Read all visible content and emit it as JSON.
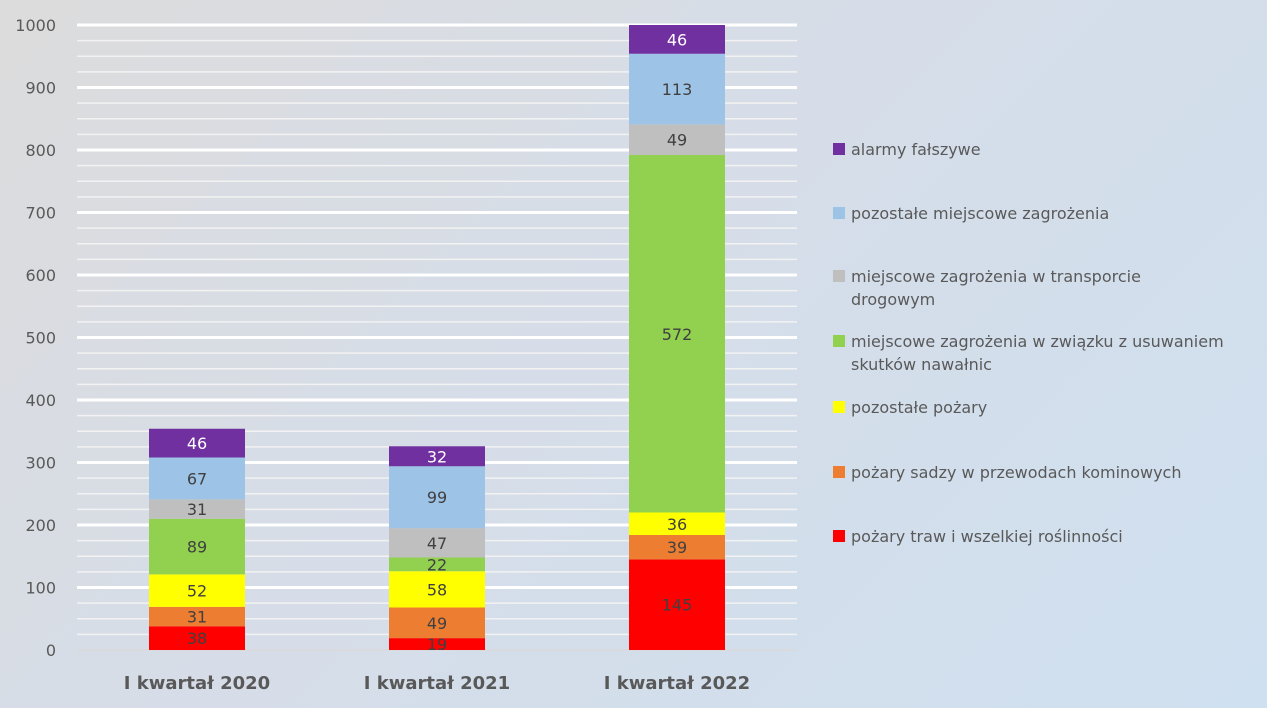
{
  "chart_data": {
    "type": "bar",
    "stacked": true,
    "title": "",
    "xlabel": "",
    "ylabel": "",
    "ylim": [
      0,
      1000
    ],
    "y_major_step": 100,
    "y_minor_step": 25,
    "yticks": [
      "0",
      "100",
      "200",
      "300",
      "400",
      "500",
      "600",
      "700",
      "800",
      "900",
      "1000"
    ],
    "grid": true,
    "legend_position": "right",
    "categories": [
      "I kwartał 2020",
      "I kwartał 2021",
      "I kwartał 2022"
    ],
    "series": [
      {
        "name": "pożary traw i wszelkiej roślinności",
        "color": "#ff0000",
        "label_color": "#404040",
        "values": [
          38,
          19,
          145
        ]
      },
      {
        "name": "pożary sadzy w przewodach kominowych",
        "color": "#ed7d31",
        "label_color": "#404040",
        "values": [
          31,
          49,
          39
        ]
      },
      {
        "name": "pozostałe pożary",
        "color": "#ffff00",
        "label_color": "#404040",
        "values": [
          52,
          58,
          36
        ]
      },
      {
        "name": "miejscowe zagrożenia w związku z usuwaniem skutków nawałnic",
        "color": "#92d050",
        "label_color": "#404040",
        "values": [
          89,
          22,
          572
        ]
      },
      {
        "name": "miejscowe zagrożenia w transporcie drogowym",
        "color": "#bfbfbf",
        "label_color": "#404040",
        "values": [
          31,
          47,
          49
        ]
      },
      {
        "name": "pozostałe miejscowe zagrożenia",
        "color": "#9dc3e6",
        "label_color": "#404040",
        "values": [
          67,
          99,
          113
        ]
      },
      {
        "name": "alarmy fałszywe",
        "color": "#7030a0",
        "label_color": "#ffffff",
        "values": [
          46,
          32,
          46
        ]
      }
    ]
  },
  "legend": {
    "items": [
      {
        "label": "alarmy fałszywe",
        "color": "#7030a0"
      },
      {
        "label": "pozostałe miejscowe zagrożenia",
        "color": "#9dc3e6"
      },
      {
        "label": "miejscowe zagrożenia w transporcie drogowym",
        "color": "#bfbfbf"
      },
      {
        "label": "miejscowe zagrożenia w związku z usuwaniem skutków nawałnic",
        "color": "#92d050"
      },
      {
        "label": "pozostałe pożary",
        "color": "#ffff00"
      },
      {
        "label": "pożary sadzy w przewodach kominowych",
        "color": "#ed7d31"
      },
      {
        "label": "pożary traw i wszelkiej roślinności",
        "color": "#ff0000"
      }
    ]
  }
}
